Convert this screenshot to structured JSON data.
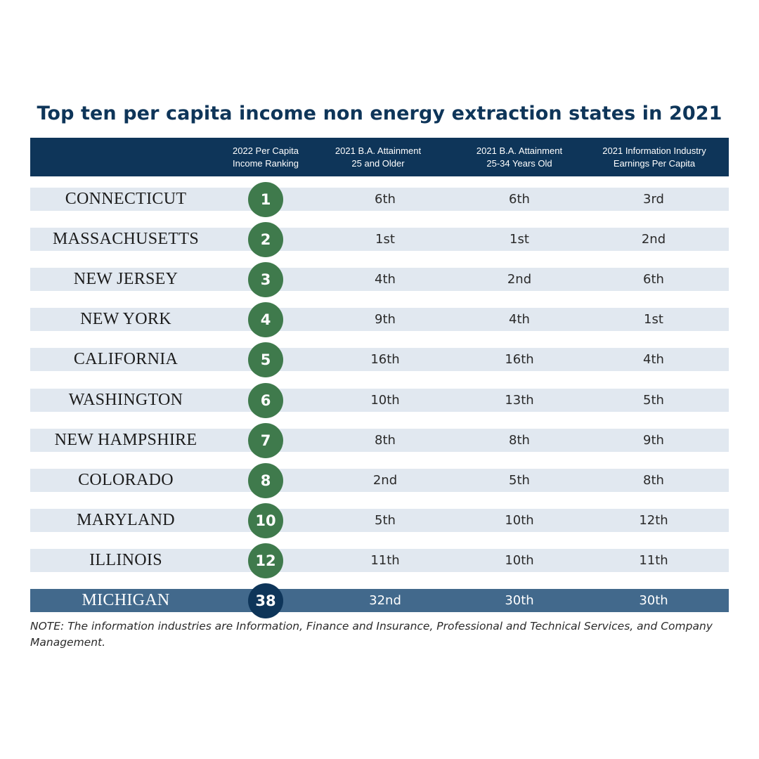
{
  "title": "Top ten per capita income non energy extraction states in 2021",
  "colors": {
    "header": "#0e3559",
    "row": "#e1e8f0",
    "highlight_row": "#42698c",
    "badge": "#3f7a4c",
    "highlight_badge": "#0e3559"
  },
  "chart_data": {
    "type": "table",
    "columns": [
      "",
      "2022 Per Capita\nIncome Ranking",
      "2021 B.A. Attainment\n25 and Older",
      "2021 B.A. Attainment\n25-34 Years Old",
      "2021 Information Industry\nEarnings Per Capita"
    ],
    "rows": [
      {
        "state": "CONNECTICUT",
        "income_rank": "1",
        "ba_25_older": "6th",
        "ba_25_34": "6th",
        "info_earnings": "3rd",
        "highlight": false
      },
      {
        "state": "MASSACHUSETTS",
        "income_rank": "2",
        "ba_25_older": "1st",
        "ba_25_34": "1st",
        "info_earnings": "2nd",
        "highlight": false
      },
      {
        "state": "NEW JERSEY",
        "income_rank": "3",
        "ba_25_older": "4th",
        "ba_25_34": "2nd",
        "info_earnings": "6th",
        "highlight": false
      },
      {
        "state": "NEW YORK",
        "income_rank": "4",
        "ba_25_older": "9th",
        "ba_25_34": "4th",
        "info_earnings": "1st",
        "highlight": false
      },
      {
        "state": "CALIFORNIA",
        "income_rank": "5",
        "ba_25_older": "16th",
        "ba_25_34": "16th",
        "info_earnings": "4th",
        "highlight": false
      },
      {
        "state": "WASHINGTON",
        "income_rank": "6",
        "ba_25_older": "10th",
        "ba_25_34": "13th",
        "info_earnings": "5th",
        "highlight": false
      },
      {
        "state": "NEW HAMPSHIRE",
        "income_rank": "7",
        "ba_25_older": "8th",
        "ba_25_34": "8th",
        "info_earnings": "9th",
        "highlight": false
      },
      {
        "state": "COLORADO",
        "income_rank": "8",
        "ba_25_older": "2nd",
        "ba_25_34": "5th",
        "info_earnings": "8th",
        "highlight": false
      },
      {
        "state": "MARYLAND",
        "income_rank": "10",
        "ba_25_older": "5th",
        "ba_25_34": "10th",
        "info_earnings": "12th",
        "highlight": false
      },
      {
        "state": "ILLINOIS",
        "income_rank": "12",
        "ba_25_older": "11th",
        "ba_25_34": "10th",
        "info_earnings": "11th",
        "highlight": false
      },
      {
        "state": "MICHIGAN",
        "income_rank": "38",
        "ba_25_older": "32nd",
        "ba_25_34": "30th",
        "info_earnings": "30th",
        "highlight": true
      }
    ]
  },
  "note": "NOTE: The information industries are Information, Finance and Insurance, Professional and Technical Services, and Company Management."
}
